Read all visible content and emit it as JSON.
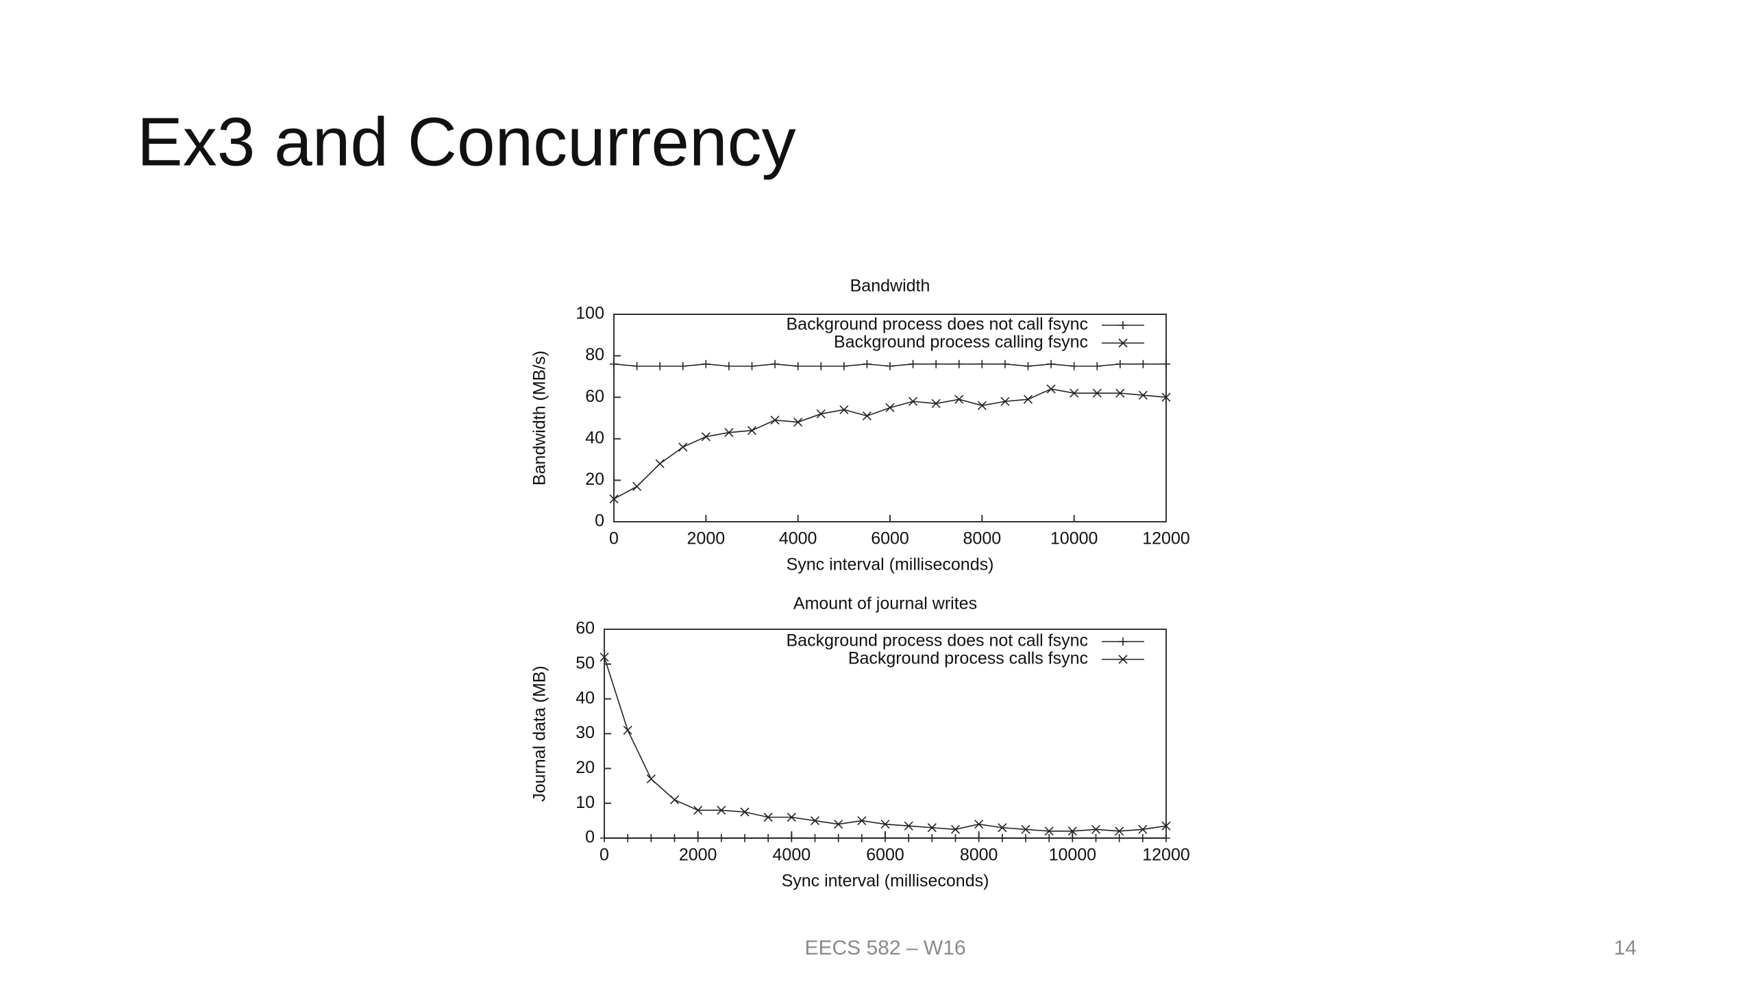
{
  "header": {
    "title": "Ex3 and Concurrency"
  },
  "footer": {
    "text": "EECS 582 – W16",
    "page": "14"
  },
  "chart_data": [
    {
      "type": "line",
      "title": "Bandwidth",
      "x_label": "Sync interval (milliseconds)",
      "y_label": "Bandwidth (MB/s)",
      "x": [
        0,
        500,
        1000,
        1500,
        2000,
        2500,
        3000,
        3500,
        4000,
        4500,
        5000,
        5500,
        6000,
        6500,
        7000,
        7500,
        8000,
        8500,
        9000,
        9500,
        10000,
        10500,
        11000,
        11500,
        12000
      ],
      "series": [
        {
          "name": "Background process does not call fsync",
          "color": "#222222",
          "marker": "plus",
          "values": [
            76,
            75,
            75,
            75,
            76,
            75,
            75,
            76,
            75,
            75,
            75,
            76,
            75,
            76,
            76,
            76,
            76,
            76,
            75,
            76,
            75,
            75,
            76,
            76,
            76
          ]
        },
        {
          "name": "Background process calling fsync",
          "color": "#222222",
          "marker": "cross",
          "values": [
            11,
            17,
            28,
            36,
            41,
            43,
            44,
            49,
            48,
            52,
            54,
            51,
            55,
            58,
            57,
            59,
            56,
            58,
            59,
            64,
            62,
            62,
            62,
            61,
            60
          ]
        }
      ],
      "xlim": [
        0,
        12000
      ],
      "xticks": [
        0,
        2000,
        4000,
        6000,
        8000,
        10000,
        12000
      ],
      "ylim": [
        0,
        100
      ],
      "yticks": [
        0,
        20,
        40,
        60,
        80,
        100
      ],
      "legend": "top-right",
      "grid": false
    },
    {
      "type": "line",
      "title": "Amount of journal writes",
      "x_label": "Sync interval (milliseconds)",
      "y_label": "Journal data (MB)",
      "x": [
        0,
        500,
        1000,
        1500,
        2000,
        2500,
        3000,
        3500,
        4000,
        4500,
        5000,
        5500,
        6000,
        6500,
        7000,
        7500,
        8000,
        8500,
        9000,
        9500,
        10000,
        10500,
        11000,
        11500,
        12000
      ],
      "series": [
        {
          "name": "Background process does not call fsync",
          "color": "#222222",
          "marker": "plus",
          "values": [
            0,
            0,
            0,
            0,
            0,
            0,
            0,
            0,
            0,
            0,
            0,
            0,
            0,
            0,
            0,
            0,
            0,
            0,
            0,
            0,
            0,
            0,
            0,
            0,
            0
          ]
        },
        {
          "name": "Background process calls fsync",
          "color": "#222222",
          "marker": "cross",
          "values": [
            52,
            31,
            17,
            11,
            8,
            8,
            7.5,
            6,
            6,
            5,
            4,
            5,
            4,
            3.5,
            3,
            2.5,
            4,
            3,
            2.5,
            2,
            2,
            2.5,
            2,
            2.5,
            3.5
          ]
        }
      ],
      "xlim": [
        0,
        12000
      ],
      "xticks": [
        0,
        2000,
        4000,
        6000,
        8000,
        10000,
        12000
      ],
      "ylim": [
        0,
        60
      ],
      "yticks": [
        0,
        10,
        20,
        30,
        40,
        50,
        60
      ],
      "legend": "top-right",
      "grid": false
    }
  ]
}
